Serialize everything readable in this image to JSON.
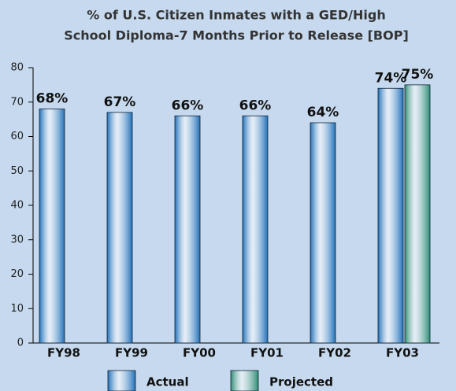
{
  "chart_data": {
    "type": "bar",
    "title": [
      "% of U.S. Citizen Inmates with a GED/High",
      "School Diploma-7 Months Prior to Release [BOP]"
    ],
    "categories": [
      "FY98",
      "FY99",
      "FY00",
      "FY01",
      "FY02",
      "FY03"
    ],
    "series": [
      {
        "name": "Actual",
        "color": "#1f6fb8",
        "values": [
          68,
          67,
          66,
          66,
          64,
          74
        ],
        "value_labels": [
          "68%",
          "67%",
          "66%",
          "66%",
          "64%",
          "74%"
        ]
      },
      {
        "name": "Projected",
        "color": "#2e8b73",
        "values": [
          null,
          null,
          null,
          null,
          null,
          75
        ],
        "value_labels": [
          null,
          null,
          null,
          null,
          null,
          "75%"
        ]
      }
    ],
    "ylim": [
      0,
      80
    ],
    "yticks": [
      0,
      10,
      20,
      30,
      40,
      50,
      60,
      70,
      80
    ]
  }
}
